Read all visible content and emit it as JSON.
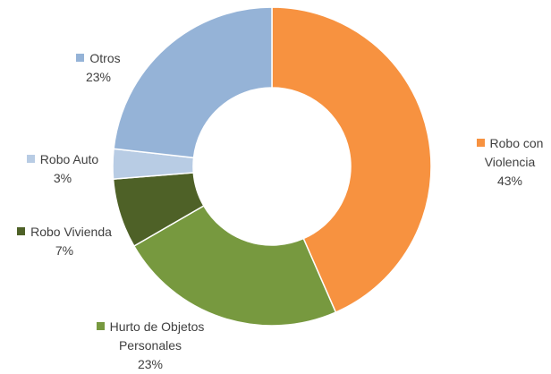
{
  "chart_data": {
    "type": "donut",
    "categories": [
      "Robo con Violencia",
      "Hurto de Objetos Personales",
      "Robo Vivienda",
      "Robo Auto",
      "Otros"
    ],
    "values": [
      43,
      23,
      7,
      3,
      23
    ],
    "value_labels": [
      "43%",
      "23%",
      "7%",
      "3%",
      "23%"
    ],
    "colors": [
      "#f79240",
      "#77993f",
      "#4e6127",
      "#b8cce4",
      "#95b3d7"
    ]
  }
}
